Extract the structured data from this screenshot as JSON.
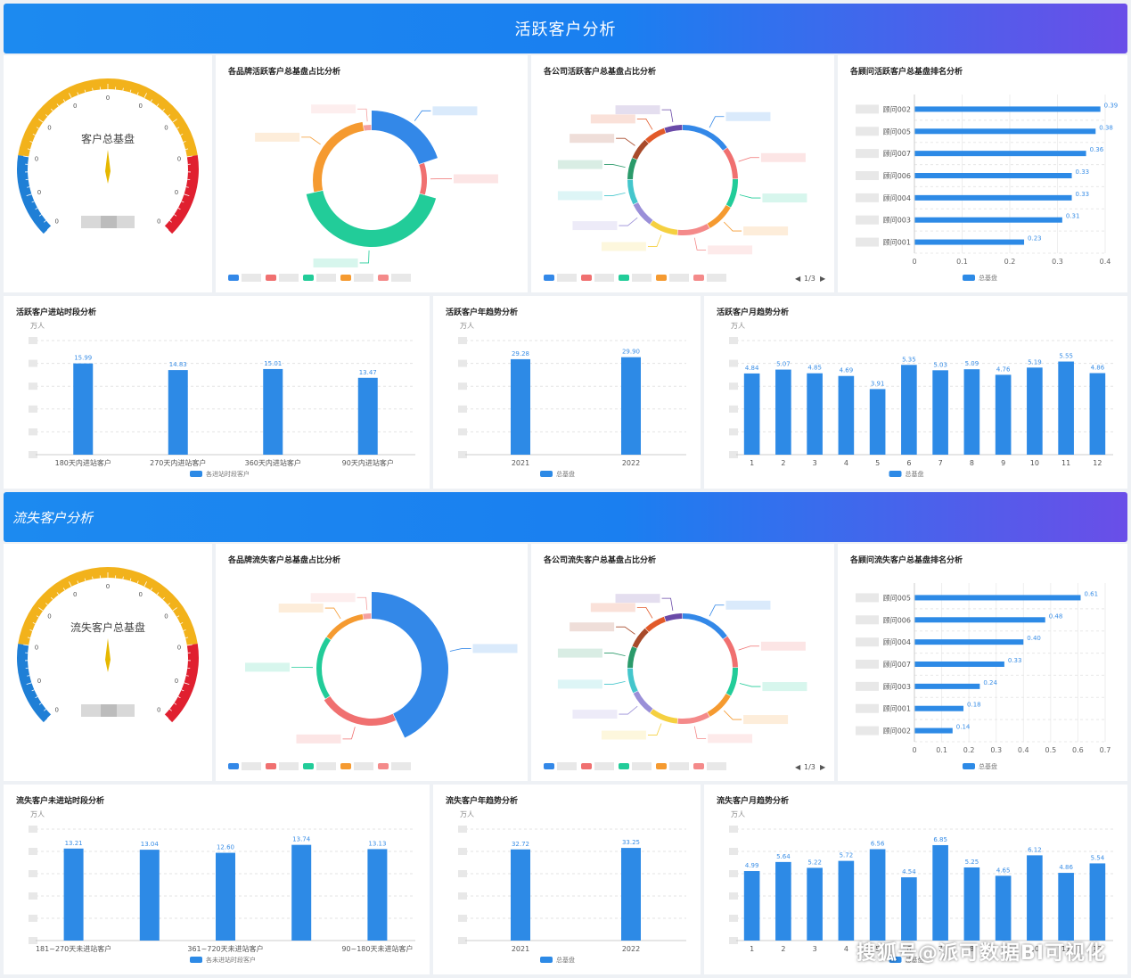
{
  "sections": [
    {
      "banner": "活跃客户分析",
      "gauge": {
        "label": "客户总基盘"
      },
      "brand_donut": {
        "title": "各品牌活跃客户总基盘占比分析"
      },
      "company_donut": {
        "title": "各公司活跃客户总基盘占比分析",
        "pager": "1/3"
      },
      "rank": {
        "title": "各顾问活跃客户总基盘排名分析",
        "legend": "总基盘",
        "xlim": [
          0,
          0.4
        ],
        "ticks": [
          "0",
          "0.1",
          "0.2",
          "0.3",
          "0.4"
        ],
        "items": [
          {
            "label": "顾问002",
            "value": 0.39
          },
          {
            "label": "顾问005",
            "value": 0.38
          },
          {
            "label": "顾问007",
            "value": 0.36
          },
          {
            "label": "顾问006",
            "value": 0.33
          },
          {
            "label": "顾问004",
            "value": 0.33
          },
          {
            "label": "顾问003",
            "value": 0.31
          },
          {
            "label": "顾问001",
            "value": 0.23
          }
        ]
      },
      "period": {
        "title": "活跃客户进站时段分析",
        "unit": "万人",
        "legend": "各进站时段客户",
        "categories": [
          "180天内进站客户",
          "270天内进站客户",
          "360天内进站客户",
          "90天内进站客户"
        ],
        "values": [
          15.99,
          14.83,
          15.01,
          13.47
        ],
        "ymax": 20
      },
      "yearly": {
        "title": "活跃客户年趋势分析",
        "unit": "万人",
        "legend": "总基盘",
        "categories": [
          "2021",
          "2022"
        ],
        "values": [
          29.28,
          29.9
        ],
        "ymax": 35
      },
      "monthly": {
        "title": "活跃客户月趋势分析",
        "unit": "万人",
        "legend": "总基盘",
        "categories": [
          "1",
          "2",
          "3",
          "4",
          "5",
          "6",
          "7",
          "8",
          "9",
          "10",
          "11",
          "12"
        ],
        "values": [
          4.84,
          5.07,
          4.85,
          4.69,
          3.91,
          5.35,
          5.03,
          5.09,
          4.76,
          5.19,
          5.55,
          4.86
        ],
        "ymax": 6.8
      }
    },
    {
      "banner": "流失客户分析",
      "gauge": {
        "label": "流失客户总基盘"
      },
      "brand_donut": {
        "title": "各品牌流失客户总基盘占比分析"
      },
      "company_donut": {
        "title": "各公司流失客户总基盘占比分析",
        "pager": "1/3"
      },
      "rank": {
        "title": "各顾问流失客户总基盘排名分析",
        "legend": "总基盘",
        "xlim": [
          0,
          0.7
        ],
        "ticks": [
          "0",
          "0.1",
          "0.2",
          "0.3",
          "0.4",
          "0.5",
          "0.6",
          "0.7"
        ],
        "items": [
          {
            "label": "顾问005",
            "value": 0.61
          },
          {
            "label": "顾问006",
            "value": 0.48
          },
          {
            "label": "顾问004",
            "value": 0.4
          },
          {
            "label": "顾问007",
            "value": 0.33
          },
          {
            "label": "顾问003",
            "value": 0.24
          },
          {
            "label": "顾问001",
            "value": 0.18
          },
          {
            "label": "顾问002",
            "value": 0.14
          }
        ]
      },
      "period": {
        "title": "流失客户未进站时段分析",
        "unit": "万人",
        "legend": "各未进站时段客户",
        "categories": [
          "181~270天未进站客户",
          "",
          "361~720天未进站客户",
          "",
          "90~180天未进站客户"
        ],
        "values": [
          13.21,
          13.04,
          12.6,
          13.74,
          13.13
        ],
        "ymax": 16
      },
      "yearly": {
        "title": "流失客户年趋势分析",
        "unit": "万人",
        "legend": "总基盘",
        "categories": [
          "2021",
          "2022"
        ],
        "values": [
          32.72,
          33.25
        ],
        "ymax": 40
      },
      "monthly": {
        "title": "流失客户月趋势分析",
        "unit": "万人",
        "legend": "总基盘",
        "categories": [
          "1",
          "2",
          "3",
          "4",
          "5",
          "6",
          "7",
          "8",
          "9",
          "10",
          "11",
          "12"
        ],
        "values": [
          4.99,
          5.64,
          5.22,
          5.72,
          6.56,
          4.54,
          6.85,
          5.25,
          4.65,
          6.12,
          4.86,
          5.54
        ],
        "ymax": 8
      }
    }
  ],
  "chart_data": [
    {
      "type": "bar",
      "title": "活跃客户进站时段分析",
      "ylabel": "万人",
      "categories": [
        "180天内进站客户",
        "270天内进站客户",
        "360天内进站客户",
        "90天内进站客户"
      ],
      "series": [
        {
          "name": "各进站时段客户",
          "values": [
            15.99,
            14.83,
            15.01,
            13.47
          ]
        }
      ]
    },
    {
      "type": "bar",
      "title": "活跃客户年趋势分析",
      "ylabel": "万人",
      "categories": [
        "2021",
        "2022"
      ],
      "series": [
        {
          "name": "总基盘",
          "values": [
            29.28,
            29.9
          ]
        }
      ]
    },
    {
      "type": "bar",
      "title": "活跃客户月趋势分析",
      "ylabel": "万人",
      "categories": [
        "1",
        "2",
        "3",
        "4",
        "5",
        "6",
        "7",
        "8",
        "9",
        "10",
        "11",
        "12"
      ],
      "series": [
        {
          "name": "总基盘",
          "values": [
            4.84,
            5.07,
            4.85,
            4.69,
            3.91,
            5.35,
            5.03,
            5.09,
            4.76,
            5.19,
            5.55,
            4.86
          ]
        }
      ]
    },
    {
      "type": "bar",
      "title": "各顾问活跃客户总基盘排名分析",
      "categories": [
        "顾问002",
        "顾问005",
        "顾问007",
        "顾问006",
        "顾问004",
        "顾问003",
        "顾问001"
      ],
      "xlim": [
        0,
        0.4
      ],
      "series": [
        {
          "name": "总基盘",
          "values": [
            0.39,
            0.38,
            0.36,
            0.33,
            0.33,
            0.31,
            0.23
          ]
        }
      ]
    },
    {
      "type": "bar",
      "title": "流失客户未进站时段分析",
      "ylabel": "万人",
      "categories": [
        "181~270天未进站客户",
        "",
        "361~720天未进站客户",
        "",
        "90~180天未进站客户"
      ],
      "series": [
        {
          "name": "各未进站时段客户",
          "values": [
            13.21,
            13.04,
            12.6,
            13.74,
            13.13
          ]
        }
      ]
    },
    {
      "type": "bar",
      "title": "流失客户年趋势分析",
      "ylabel": "万人",
      "categories": [
        "2021",
        "2022"
      ],
      "series": [
        {
          "name": "总基盘",
          "values": [
            32.72,
            33.25
          ]
        }
      ]
    },
    {
      "type": "bar",
      "title": "流失客户月趋势分析",
      "ylabel": "万人",
      "categories": [
        "1",
        "2",
        "3",
        "4",
        "5",
        "6",
        "7",
        "8",
        "9",
        "10",
        "11",
        "12"
      ],
      "series": [
        {
          "name": "总基盘",
          "values": [
            4.99,
            5.64,
            5.22,
            5.72,
            6.56,
            4.54,
            6.85,
            5.25,
            4.65,
            6.12,
            4.86,
            5.54
          ]
        }
      ]
    },
    {
      "type": "bar",
      "title": "各顾问流失客户总基盘排名分析",
      "categories": [
        "顾问005",
        "顾问006",
        "顾问004",
        "顾问007",
        "顾问003",
        "顾问001",
        "顾问002"
      ],
      "xlim": [
        0,
        0.7
      ],
      "series": [
        {
          "name": "总基盘",
          "values": [
            0.61,
            0.48,
            0.4,
            0.33,
            0.24,
            0.18,
            0.14
          ]
        }
      ]
    }
  ],
  "colors": {
    "bar": "#2d8ae6",
    "banner_start": "#1c8af0",
    "banner_end": "#6a4ee8",
    "gauge_blue": "#1f7fd6",
    "gauge_yellow": "#f2b21b",
    "gauge_red": "#e02030",
    "donut_palette": [
      "#3388e8",
      "#f07070",
      "#22cc99",
      "#f59a30",
      "#f5d040",
      "#9a8fd8",
      "#44c6cc",
      "#e25a2a",
      "#a84a2a",
      "#6a4aa8",
      "#2a9a6a"
    ]
  },
  "watermark": "搜狐号@派可数据BI可视化"
}
